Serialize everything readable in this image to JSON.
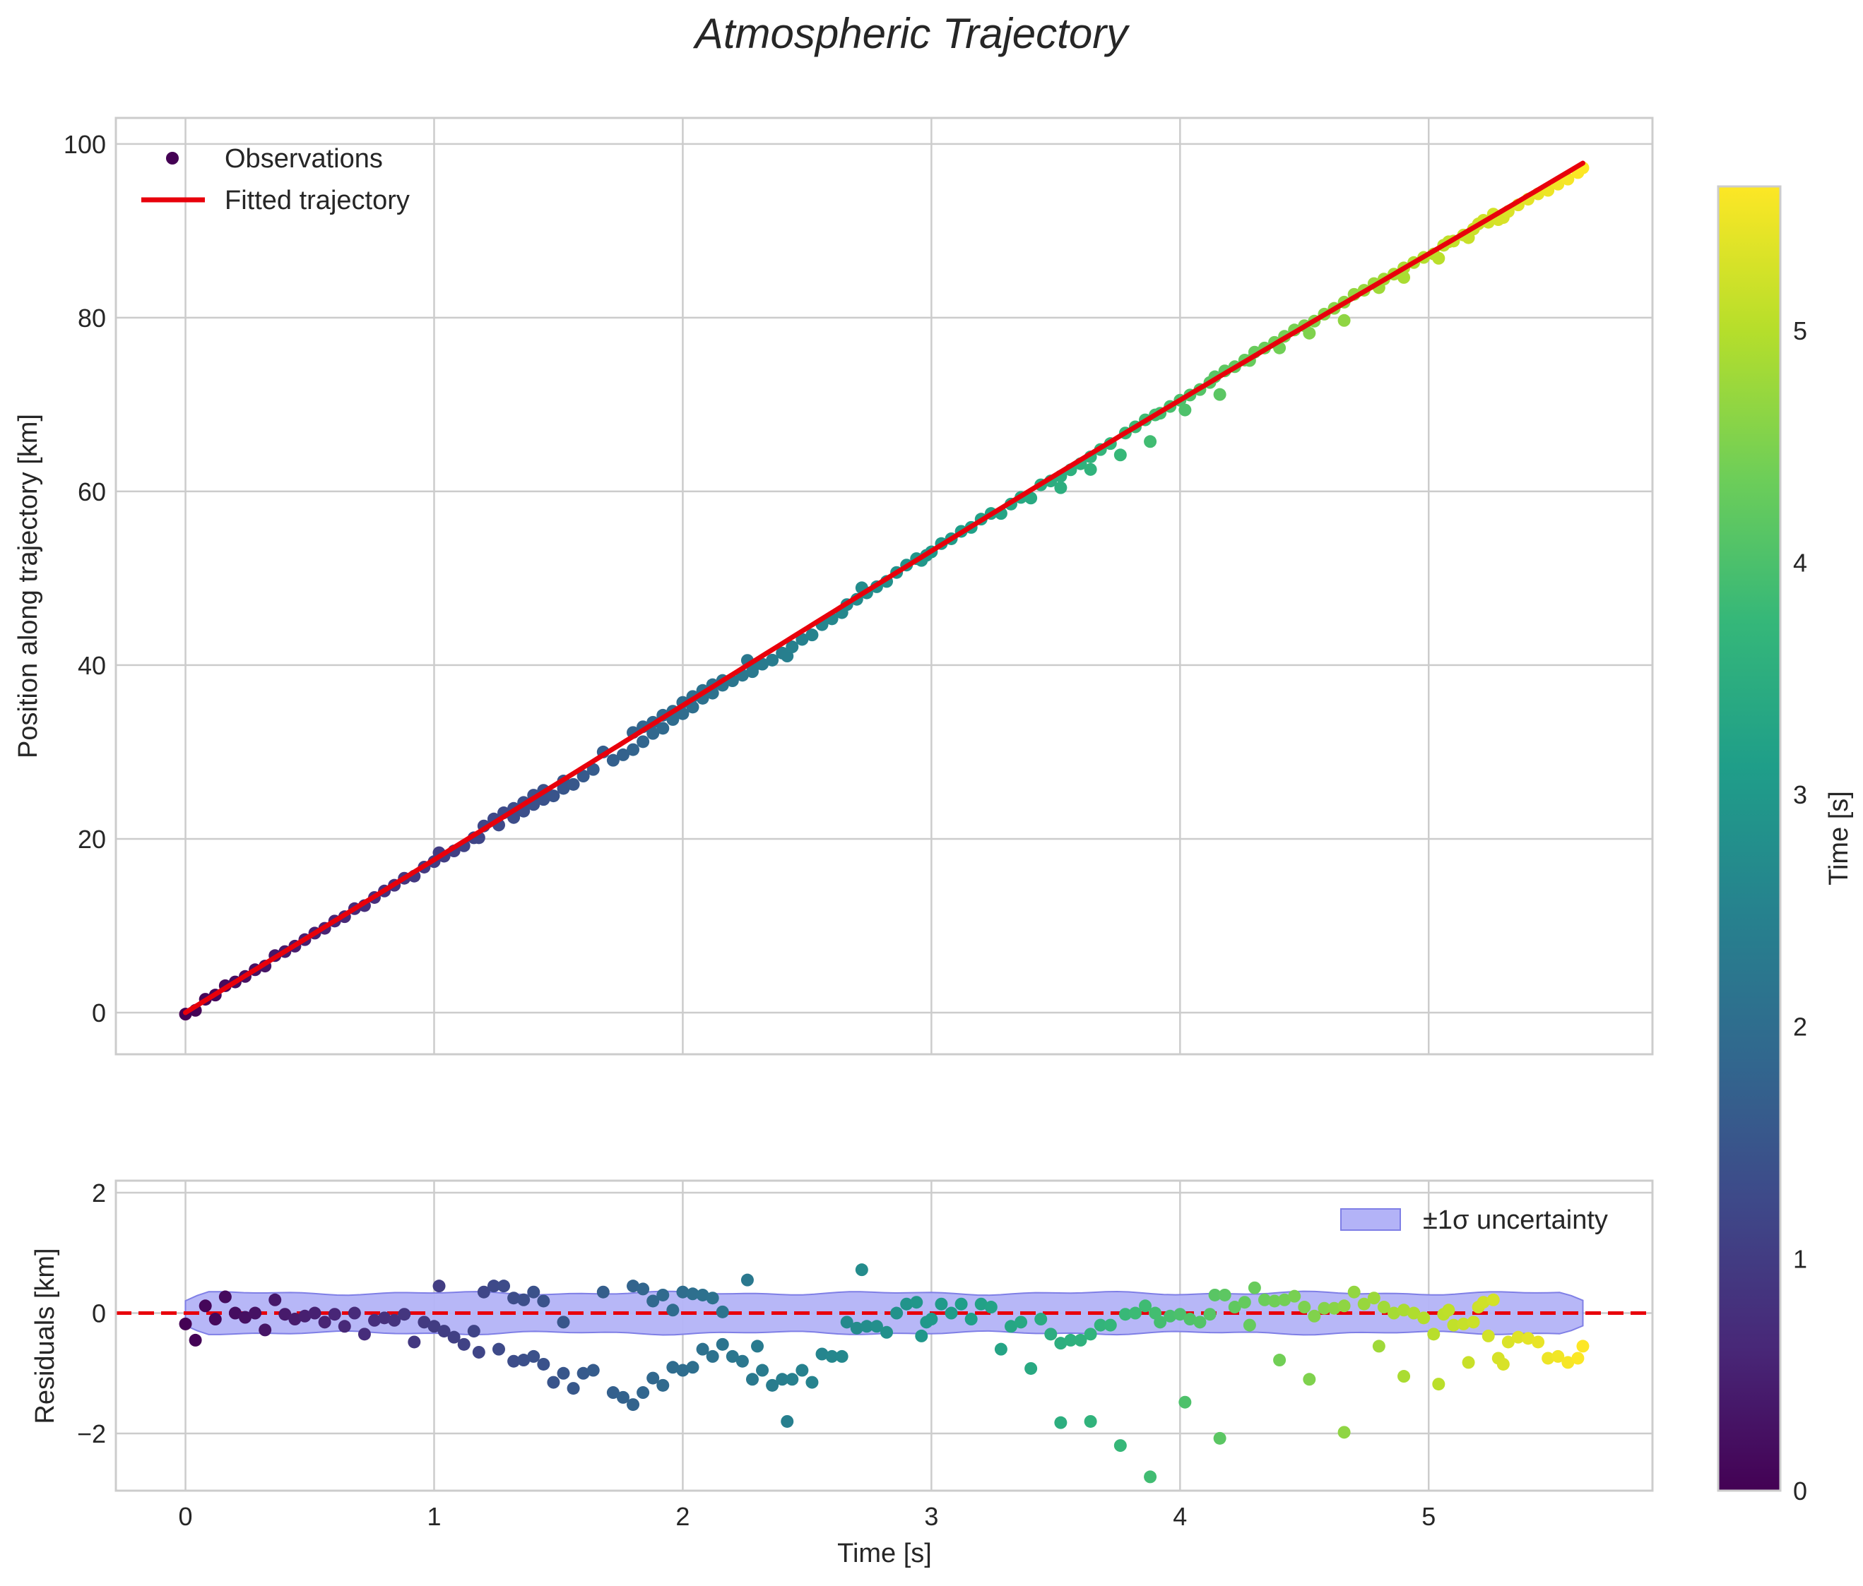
{
  "colors": {
    "fit_line": "#e8000b",
    "zero_line": "#e8000b",
    "band_fill": "#b3b3f7",
    "band_edge": "#7f7fe6",
    "grid": "#cccccc",
    "spine": "#cccccc",
    "viridis": [
      "#440154",
      "#482878",
      "#3e4989",
      "#31688e",
      "#26828e",
      "#1f9e89",
      "#35b779",
      "#6ece58",
      "#b5de2b",
      "#fde725"
    ]
  },
  "chart_data": {
    "type": "scatter",
    "title": "Atmospheric Trajectory",
    "x_tick_labels": [
      "0",
      "1",
      "2",
      "3",
      "4",
      "5"
    ],
    "main": {
      "ylabel": "Position along trajectory [km]",
      "xlim": [
        -0.28,
        5.9
      ],
      "ylim": [
        -4.8,
        103
      ],
      "y_ticks": [
        0,
        20,
        40,
        60,
        80,
        100
      ],
      "y_tick_labels": [
        "0",
        "20",
        "40",
        "60",
        "80",
        "100"
      ],
      "legend": {
        "position": "top-left",
        "observations_label": "Observations",
        "fit_label": "Fitted trajectory"
      },
      "fit": {
        "t0": 0,
        "t1": 5.62,
        "model": "smooth trajectory 0 to 97.8 km",
        "coeffs": [
          0,
          19.92,
          -0.27,
          0.255,
          -0.07,
          0.0056
        ],
        "end": 97.8
      }
    },
    "residuals": {
      "ylabel": "Residuals [km]",
      "xlabel": "Time [s]",
      "xlim": [
        -0.28,
        5.9
      ],
      "ylim": [
        -2.95,
        2.2
      ],
      "y_ticks": [
        -2,
        0,
        2
      ],
      "y_tick_labels": [
        "−2",
        "0",
        "2"
      ],
      "zero_line": 0,
      "band_label": "±1σ uncertainty",
      "band_halfwidth_km": 0.33,
      "legend_position": "top-right",
      "points": [
        [
          0.0,
          -0.18
        ],
        [
          0.04,
          -0.45
        ],
        [
          0.08,
          0.12
        ],
        [
          0.12,
          -0.1
        ],
        [
          0.16,
          0.27
        ],
        [
          0.2,
          0.0
        ],
        [
          0.24,
          -0.07
        ],
        [
          0.28,
          0.0
        ],
        [
          0.32,
          -0.28
        ],
        [
          0.36,
          0.22
        ],
        [
          0.4,
          -0.02
        ],
        [
          0.44,
          -0.1
        ],
        [
          0.48,
          -0.05
        ],
        [
          0.52,
          0.0
        ],
        [
          0.56,
          -0.15
        ],
        [
          0.6,
          -0.02
        ],
        [
          0.64,
          -0.22
        ],
        [
          0.68,
          0.0
        ],
        [
          0.72,
          -0.35
        ],
        [
          0.76,
          -0.12
        ],
        [
          0.8,
          -0.08
        ],
        [
          0.84,
          -0.12
        ],
        [
          0.88,
          -0.02
        ],
        [
          0.92,
          -0.48
        ],
        [
          0.96,
          -0.15
        ],
        [
          1.0,
          -0.22
        ],
        [
          1.02,
          0.45
        ],
        [
          1.04,
          -0.3
        ],
        [
          1.08,
          -0.4
        ],
        [
          1.12,
          -0.52
        ],
        [
          1.16,
          -0.3
        ],
        [
          1.18,
          -0.65
        ],
        [
          1.2,
          0.35
        ],
        [
          1.24,
          0.45
        ],
        [
          1.26,
          -0.6
        ],
        [
          1.28,
          0.45
        ],
        [
          1.32,
          -0.8
        ],
        [
          1.32,
          0.25
        ],
        [
          1.36,
          -0.78
        ],
        [
          1.36,
          0.22
        ],
        [
          1.4,
          -0.72
        ],
        [
          1.4,
          0.35
        ],
        [
          1.44,
          -0.85
        ],
        [
          1.44,
          0.2
        ],
        [
          1.48,
          -1.15
        ],
        [
          1.52,
          -0.15
        ],
        [
          1.52,
          -1.0
        ],
        [
          1.56,
          -1.25
        ],
        [
          1.6,
          -1.0
        ],
        [
          1.64,
          -0.95
        ],
        [
          1.68,
          0.35
        ],
        [
          1.72,
          -1.32
        ],
        [
          1.76,
          -1.4
        ],
        [
          1.8,
          -1.52
        ],
        [
          1.8,
          0.45
        ],
        [
          1.84,
          -1.32
        ],
        [
          1.84,
          0.4
        ],
        [
          1.88,
          0.2
        ],
        [
          1.88,
          -1.08
        ],
        [
          1.92,
          -1.2
        ],
        [
          1.92,
          0.3
        ],
        [
          1.96,
          -0.9
        ],
        [
          1.96,
          0.05
        ],
        [
          2.0,
          -0.95
        ],
        [
          2.0,
          0.35
        ],
        [
          2.04,
          -0.9
        ],
        [
          2.04,
          0.32
        ],
        [
          2.08,
          -0.6
        ],
        [
          2.08,
          0.3
        ],
        [
          2.12,
          -0.72
        ],
        [
          2.12,
          0.25
        ],
        [
          2.16,
          -0.52
        ],
        [
          2.16,
          0.02
        ],
        [
          2.2,
          -0.72
        ],
        [
          2.24,
          -0.8
        ],
        [
          2.26,
          0.55
        ],
        [
          2.28,
          -1.1
        ],
        [
          2.3,
          -0.55
        ],
        [
          2.32,
          -0.95
        ],
        [
          2.36,
          -1.2
        ],
        [
          2.4,
          -1.1
        ],
        [
          2.42,
          -1.8
        ],
        [
          2.44,
          -1.1
        ],
        [
          2.48,
          -0.95
        ],
        [
          2.52,
          -1.15
        ],
        [
          2.56,
          -0.68
        ],
        [
          2.6,
          -0.72
        ],
        [
          2.64,
          -0.72
        ],
        [
          2.66,
          -0.15
        ],
        [
          2.7,
          -0.25
        ],
        [
          2.72,
          0.72
        ],
        [
          2.74,
          -0.22
        ],
        [
          2.78,
          -0.22
        ],
        [
          2.82,
          -0.32
        ],
        [
          2.86,
          0.0
        ],
        [
          2.9,
          0.15
        ],
        [
          2.94,
          0.18
        ],
        [
          2.96,
          -0.38
        ],
        [
          2.98,
          -0.15
        ],
        [
          3.0,
          -0.1
        ],
        [
          3.04,
          0.15
        ],
        [
          3.08,
          0.0
        ],
        [
          3.12,
          0.15
        ],
        [
          3.16,
          -0.1
        ],
        [
          3.2,
          0.15
        ],
        [
          3.24,
          0.1
        ],
        [
          3.28,
          -0.6
        ],
        [
          3.32,
          -0.22
        ],
        [
          3.36,
          -0.15
        ],
        [
          3.4,
          -0.92
        ],
        [
          3.44,
          -0.1
        ],
        [
          3.48,
          -0.35
        ],
        [
          3.52,
          -0.5
        ],
        [
          3.52,
          -1.82
        ],
        [
          3.56,
          -0.45
        ],
        [
          3.6,
          -0.45
        ],
        [
          3.64,
          -0.35
        ],
        [
          3.64,
          -1.8
        ],
        [
          3.68,
          -0.2
        ],
        [
          3.72,
          -0.2
        ],
        [
          3.76,
          -2.2
        ],
        [
          3.78,
          -0.02
        ],
        [
          3.82,
          0.0
        ],
        [
          3.86,
          0.12
        ],
        [
          3.88,
          -2.72
        ],
        [
          3.9,
          0.0
        ],
        [
          3.92,
          -0.15
        ],
        [
          3.96,
          -0.05
        ],
        [
          4.0,
          -0.02
        ],
        [
          4.02,
          -1.48
        ],
        [
          4.04,
          -0.1
        ],
        [
          4.08,
          -0.15
        ],
        [
          4.12,
          -0.02
        ],
        [
          4.14,
          0.3
        ],
        [
          4.16,
          -2.08
        ],
        [
          4.18,
          0.3
        ],
        [
          4.22,
          0.1
        ],
        [
          4.26,
          0.18
        ],
        [
          4.28,
          -0.2
        ],
        [
          4.3,
          0.42
        ],
        [
          4.34,
          0.22
        ],
        [
          4.38,
          0.2
        ],
        [
          4.4,
          -0.78
        ],
        [
          4.42,
          0.22
        ],
        [
          4.46,
          0.28
        ],
        [
          4.5,
          0.1
        ],
        [
          4.52,
          -1.1
        ],
        [
          4.54,
          -0.05
        ],
        [
          4.58,
          0.08
        ],
        [
          4.62,
          0.08
        ],
        [
          4.66,
          0.12
        ],
        [
          4.66,
          -1.98
        ],
        [
          4.7,
          0.35
        ],
        [
          4.74,
          0.15
        ],
        [
          4.78,
          0.25
        ],
        [
          4.8,
          -0.55
        ],
        [
          4.82,
          0.1
        ],
        [
          4.86,
          0.0
        ],
        [
          4.9,
          0.05
        ],
        [
          4.9,
          -1.05
        ],
        [
          4.94,
          0.0
        ],
        [
          4.98,
          -0.08
        ],
        [
          5.02,
          -0.35
        ],
        [
          5.04,
          -1.18
        ],
        [
          5.06,
          -0.02
        ],
        [
          5.08,
          0.05
        ],
        [
          5.1,
          -0.2
        ],
        [
          5.14,
          -0.18
        ],
        [
          5.16,
          -0.82
        ],
        [
          5.18,
          -0.15
        ],
        [
          5.2,
          0.1
        ],
        [
          5.22,
          0.18
        ],
        [
          5.24,
          -0.38
        ],
        [
          5.26,
          0.22
        ],
        [
          5.28,
          -0.75
        ],
        [
          5.3,
          -0.85
        ],
        [
          5.32,
          -0.48
        ],
        [
          5.36,
          -0.4
        ],
        [
          5.4,
          -0.42
        ],
        [
          5.44,
          -0.48
        ],
        [
          5.48,
          -0.75
        ],
        [
          5.52,
          -0.72
        ],
        [
          5.56,
          -0.82
        ],
        [
          5.6,
          -0.75
        ],
        [
          5.62,
          -0.55
        ]
      ]
    },
    "colorbar": {
      "label": "Time [s]",
      "range": [
        0,
        5.62
      ],
      "ticks": [
        0,
        1,
        2,
        3,
        4,
        5
      ],
      "tick_labels": [
        "0",
        "1",
        "2",
        "3",
        "4",
        "5"
      ],
      "colormap": "viridis"
    }
  }
}
